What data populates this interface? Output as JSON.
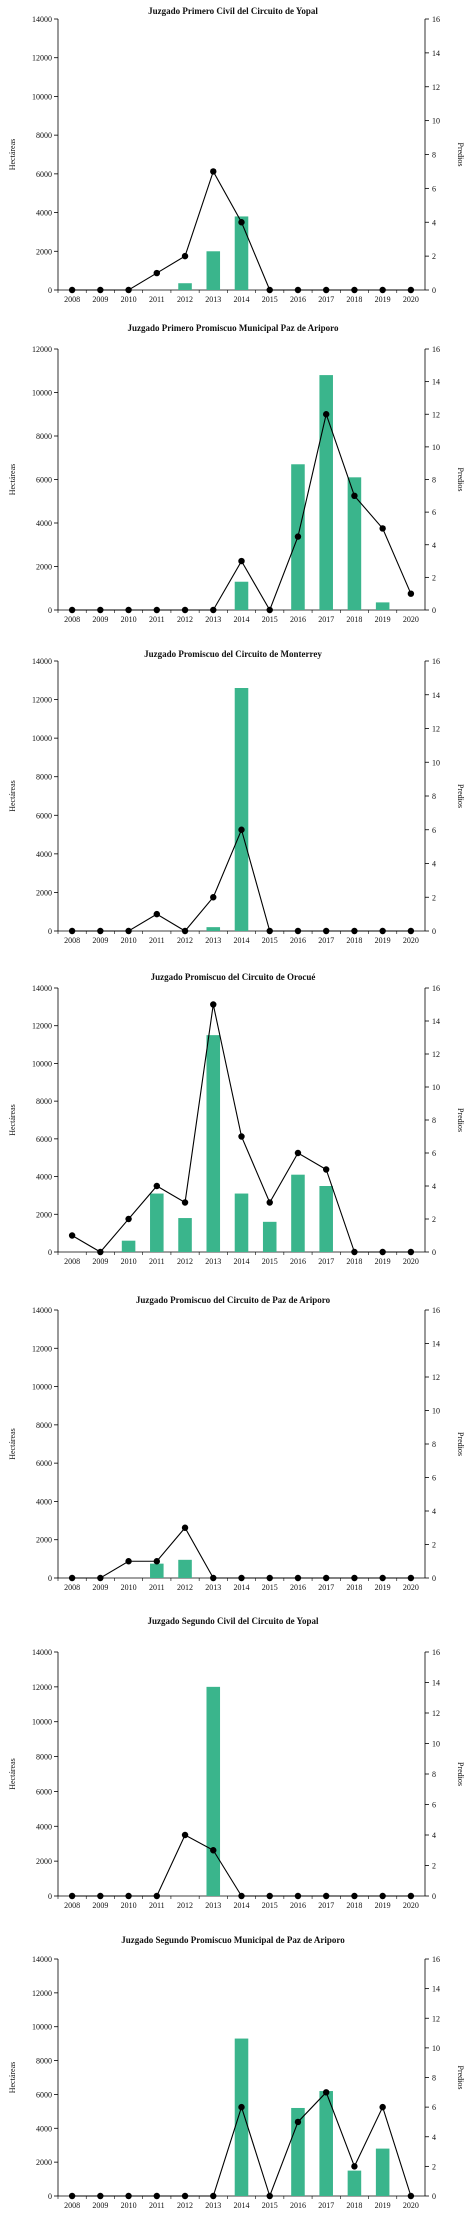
{
  "colors": {
    "bar": "#3ab58c",
    "line": "#000000",
    "axis": "#000000"
  },
  "chart_data": [
    {
      "type": "bar+line",
      "title": "Juzgado Primero Civil del Circuito de Yopal",
      "ylabel": "Hectáreas",
      "y2label": "Predios",
      "categories": [
        "2008",
        "2009",
        "2010",
        "2011",
        "2012",
        "2013",
        "2014",
        "2015",
        "2016",
        "2017",
        "2018",
        "2019",
        "2020"
      ],
      "ylim": [
        0,
        14000
      ],
      "yticks": [
        0,
        2000,
        4000,
        6000,
        8000,
        10000,
        12000,
        14000
      ],
      "y2lim": [
        0,
        16
      ],
      "y2ticks": [
        0,
        2,
        4,
        6,
        8,
        10,
        12,
        14,
        16
      ],
      "series": [
        {
          "kind": "bar",
          "axis": "left",
          "values": [
            0,
            0,
            0,
            0,
            350,
            2000,
            3800,
            0,
            0,
            0,
            0,
            0,
            0
          ]
        },
        {
          "kind": "line",
          "axis": "right",
          "values": [
            0,
            0,
            0,
            1,
            2,
            7,
            4,
            0,
            0,
            0,
            0,
            0,
            0
          ]
        }
      ]
    },
    {
      "type": "bar+line",
      "title": "Juzgado Primero Promiscuo Municipal Paz de Ariporo",
      "ylabel": "Hectáreas",
      "y2label": "Predios",
      "categories": [
        "2008",
        "2009",
        "2010",
        "2011",
        "2012",
        "2013",
        "2014",
        "2015",
        "2016",
        "2017",
        "2018",
        "2019",
        "2020"
      ],
      "ylim": [
        0,
        12000
      ],
      "yticks": [
        0,
        2000,
        4000,
        6000,
        8000,
        10000,
        12000
      ],
      "y2lim": [
        0,
        16
      ],
      "y2ticks": [
        0,
        2,
        4,
        6,
        8,
        10,
        12,
        14,
        16
      ],
      "series": [
        {
          "kind": "bar",
          "axis": "left",
          "values": [
            0,
            0,
            0,
            0,
            0,
            0,
            1300,
            0,
            6700,
            10800,
            6100,
            350,
            0
          ]
        },
        {
          "kind": "line",
          "axis": "right",
          "values": [
            0,
            0,
            0,
            0,
            0,
            0,
            3,
            0,
            4.5,
            12,
            7,
            5,
            1
          ]
        }
      ]
    },
    {
      "type": "bar+line",
      "title": "Juzgado Promiscuo del Circuito de Monterrey",
      "ylabel": "Hectáreas",
      "y2label": "Predios",
      "categories": [
        "2008",
        "2009",
        "2010",
        "2011",
        "2012",
        "2013",
        "2014",
        "2015",
        "2016",
        "2017",
        "2018",
        "2019",
        "2020"
      ],
      "ylim": [
        0,
        14000
      ],
      "yticks": [
        0,
        2000,
        4000,
        6000,
        8000,
        10000,
        12000,
        14000
      ],
      "y2lim": [
        0,
        16
      ],
      "y2ticks": [
        0,
        2,
        4,
        6,
        8,
        10,
        12,
        14,
        16
      ],
      "series": [
        {
          "kind": "bar",
          "axis": "left",
          "values": [
            0,
            0,
            0,
            0,
            0,
            200,
            12600,
            0,
            0,
            0,
            0,
            0,
            0
          ]
        },
        {
          "kind": "line",
          "axis": "right",
          "values": [
            0,
            0,
            0,
            1,
            0,
            2,
            6,
            0,
            0,
            0,
            0,
            0,
            0
          ]
        }
      ]
    },
    {
      "type": "bar+line",
      "title": "Juzgado Promiscuo del Circuito de Orocué",
      "ylabel": "Hectáreas",
      "y2label": "Predios",
      "categories": [
        "2008",
        "2009",
        "2010",
        "2011",
        "2012",
        "2013",
        "2014",
        "2015",
        "2016",
        "2017",
        "2018",
        "2019",
        "2020"
      ],
      "ylim": [
        0,
        14000
      ],
      "yticks": [
        0,
        2000,
        4000,
        6000,
        8000,
        10000,
        12000,
        14000
      ],
      "y2lim": [
        0,
        16
      ],
      "y2ticks": [
        0,
        2,
        4,
        6,
        8,
        10,
        12,
        14,
        16
      ],
      "series": [
        {
          "kind": "bar",
          "axis": "left",
          "values": [
            0,
            0,
            600,
            3100,
            1800,
            11500,
            3100,
            1600,
            4100,
            3500,
            0,
            0,
            0
          ]
        },
        {
          "kind": "line",
          "axis": "right",
          "values": [
            1,
            0,
            2,
            4,
            3,
            15,
            7,
            3,
            6,
            5,
            0,
            0,
            0
          ]
        }
      ]
    },
    {
      "type": "bar+line",
      "title": "Juzgado Promiscuo del Circuito de Paz de Ariporo",
      "ylabel": "Hectáreas",
      "y2label": "Predios",
      "categories": [
        "2008",
        "2009",
        "2010",
        "2011",
        "2012",
        "2013",
        "2014",
        "2015",
        "2016",
        "2017",
        "2018",
        "2019",
        "2020"
      ],
      "ylim": [
        0,
        14000
      ],
      "yticks": [
        0,
        2000,
        4000,
        6000,
        8000,
        10000,
        12000,
        14000
      ],
      "y2lim": [
        0,
        16
      ],
      "y2ticks": [
        0,
        2,
        4,
        6,
        8,
        10,
        12,
        14,
        16
      ],
      "series": [
        {
          "kind": "bar",
          "axis": "left",
          "values": [
            0,
            0,
            0,
            750,
            950,
            0,
            0,
            0,
            0,
            0,
            0,
            0,
            0
          ]
        },
        {
          "kind": "line",
          "axis": "right",
          "values": [
            0,
            0,
            1,
            1,
            3,
            0,
            0,
            0,
            0,
            0,
            0,
            0,
            0
          ]
        }
      ]
    },
    {
      "type": "bar+line",
      "title": "Juzgado Segundo Civil del Circuito de Yopal",
      "ylabel": "Hectáreas",
      "y2label": "Predios",
      "categories": [
        "2008",
        "2009",
        "2010",
        "2011",
        "2012",
        "2013",
        "2014",
        "2015",
        "2016",
        "2017",
        "2018",
        "2019",
        "2020"
      ],
      "ylim": [
        0,
        14000
      ],
      "yticks": [
        0,
        2000,
        4000,
        6000,
        8000,
        10000,
        12000,
        14000
      ],
      "y2lim": [
        0,
        16
      ],
      "y2ticks": [
        0,
        2,
        4,
        6,
        8,
        10,
        12,
        14,
        16
      ],
      "series": [
        {
          "kind": "bar",
          "axis": "left",
          "values": [
            0,
            0,
            0,
            0,
            0,
            12000,
            0,
            0,
            0,
            0,
            0,
            0,
            0
          ]
        },
        {
          "kind": "line",
          "axis": "right",
          "values": [
            0,
            0,
            0,
            0,
            4,
            3,
            0,
            0,
            0,
            0,
            0,
            0,
            0
          ]
        }
      ]
    },
    {
      "type": "bar+line",
      "title": "Juzgado Segundo Promiscuo Municipal de Paz de Ariporo",
      "ylabel": "Hectáreas",
      "y2label": "Predios",
      "categories": [
        "2008",
        "2009",
        "2010",
        "2011",
        "2012",
        "2013",
        "2014",
        "2015",
        "2016",
        "2017",
        "2018",
        "2019",
        "2020"
      ],
      "ylim": [
        0,
        14000
      ],
      "yticks": [
        0,
        2000,
        4000,
        6000,
        8000,
        10000,
        12000,
        14000
      ],
      "y2lim": [
        0,
        16
      ],
      "y2ticks": [
        0,
        2,
        4,
        6,
        8,
        10,
        12,
        14,
        16
      ],
      "series": [
        {
          "kind": "bar",
          "axis": "left",
          "values": [
            0,
            0,
            0,
            0,
            0,
            0,
            9300,
            0,
            5200,
            6200,
            1500,
            2800,
            0
          ]
        },
        {
          "kind": "line",
          "axis": "right",
          "values": [
            0,
            0,
            0,
            0,
            0,
            0,
            6,
            0,
            5,
            7,
            2,
            6,
            0
          ]
        }
      ]
    }
  ]
}
